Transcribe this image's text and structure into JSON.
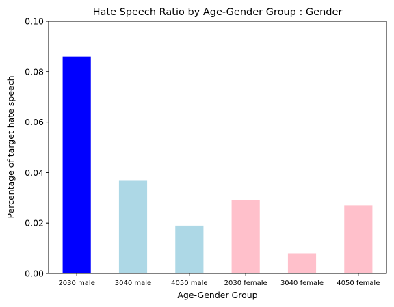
{
  "chart_data": {
    "type": "bar",
    "title": "Hate Speech Ratio by Age-Gender Group : Gender",
    "xlabel": "Age-Gender Group",
    "ylabel": "Percentage of target hate speech",
    "categories": [
      "2030 male",
      "3040 male",
      "4050 male",
      "2030 female",
      "3040 female",
      "4050 female"
    ],
    "values": [
      0.086,
      0.037,
      0.019,
      0.029,
      0.008,
      0.027
    ],
    "bar_colors": [
      "#0000ff",
      "#add8e6",
      "#add8e6",
      "#ffc0cb",
      "#ffc0cb",
      "#ffc0cb"
    ],
    "ylim": [
      0,
      0.1
    ],
    "yticks": [
      0.0,
      0.02,
      0.04,
      0.06,
      0.08,
      0.1
    ],
    "ytick_labels": [
      "0.00",
      "0.02",
      "0.04",
      "0.06",
      "0.08",
      "0.10"
    ],
    "grid": false,
    "legend": "none"
  }
}
